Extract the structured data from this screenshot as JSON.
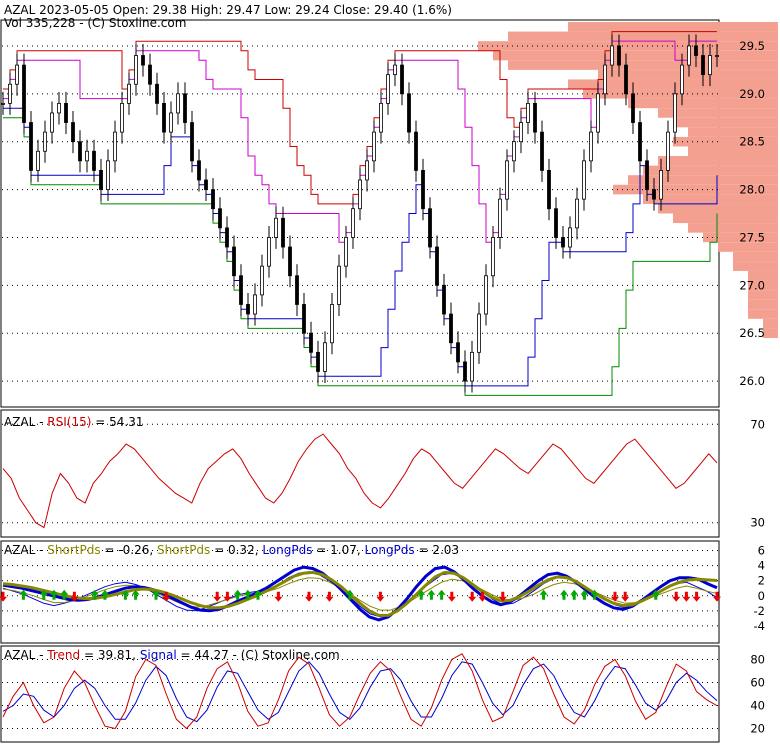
{
  "header": {
    "ticker": "AZAL",
    "line1_rest": "2023-05-05 Open: 29.38  High: 29.47  Low: 29.24  Close: 29.40 (1.6%)",
    "line2": "Vol 335,228  -  (C) Stoxline.com"
  },
  "colors": {
    "upper_channel": "#cc0000",
    "lower_channel": "#0000cc",
    "mid_line_magenta": "#cc00cc",
    "support_line": "#008800",
    "volume_profile": "#f4a090",
    "rsi": "#cc0000",
    "short_pds": "#0000ee",
    "short_pds_avg": "#888800",
    "long_pds": "#0000cc",
    "trend": "#cc0000",
    "signal": "#0000cc",
    "arrow_up": "#00aa00",
    "arrow_down": "#ee0000"
  },
  "panels": {
    "rsi": {
      "ticker": "AZAL",
      "sep1": " - ",
      "name": "RSI(15)",
      "value_text": " = 54.31"
    },
    "pds": {
      "ticker": "AZAL",
      "sep1": " - ",
      "short_name": "ShortPds",
      "short_value": " = -0.26, ",
      "short_name2": "ShortPds",
      "short_value2": " = 0.32, ",
      "long_name": "LongPds",
      "long_value": " = 1.07, ",
      "long_name2": "LongPds",
      "long_value2": " = 2.03"
    },
    "trend": {
      "ticker": "AZAL",
      "sep1": " - ",
      "trend_name": "Trend",
      "trend_value": " = 39.81, ",
      "signal_name": "Signal",
      "signal_value": " = 44.27",
      "credit": " - (C) Stoxline.com"
    }
  },
  "chart_data": [
    {
      "type": "candlestick",
      "panel": "price",
      "ylim": [
        25.75,
        29.75
      ],
      "y_ticks": [
        26.0,
        26.5,
        27.0,
        27.5,
        28.0,
        28.5,
        29.0,
        29.5
      ],
      "y_tick_labels": [
        "26.0",
        "26.5",
        "27.0",
        "27.5",
        "28.0",
        "28.5",
        "29.0",
        "29.5"
      ],
      "last": {
        "open": 29.38,
        "high": 29.47,
        "low": 29.24,
        "close": 29.4,
        "change_pct": 1.6,
        "volume": 335228
      },
      "close_series": [
        28.9,
        29.1,
        29.3,
        28.7,
        28.2,
        28.4,
        28.6,
        28.8,
        28.9,
        28.7,
        28.5,
        28.3,
        28.4,
        28.2,
        28.0,
        28.3,
        28.6,
        28.9,
        29.1,
        29.4,
        29.3,
        29.1,
        28.9,
        28.6,
        28.8,
        29.0,
        28.7,
        28.3,
        28.1,
        28.0,
        27.8,
        27.6,
        27.4,
        27.1,
        26.8,
        26.7,
        26.9,
        27.2,
        27.5,
        27.7,
        27.4,
        27.1,
        26.8,
        26.5,
        26.3,
        26.1,
        26.4,
        26.8,
        27.2,
        27.5,
        27.8,
        28.1,
        28.3,
        28.6,
        28.9,
        29.2,
        29.3,
        29.0,
        28.6,
        28.2,
        27.8,
        27.4,
        27.0,
        26.7,
        26.4,
        26.2,
        26.0,
        26.3,
        26.7,
        27.1,
        27.5,
        27.9,
        28.3,
        28.5,
        28.7,
        28.9,
        28.6,
        28.2,
        27.8,
        27.5,
        27.4,
        27.6,
        27.9,
        28.3,
        28.6,
        29.0,
        29.3,
        29.5,
        29.3,
        29.0,
        28.7,
        28.3,
        28.0,
        27.9,
        28.2,
        28.6,
        29.0,
        29.3,
        29.5,
        29.4,
        29.2,
        29.4,
        29.4
      ],
      "volume_profile": {
        "price_levels": [
          29.7,
          29.6,
          29.5,
          29.4,
          29.3,
          29.2,
          29.1,
          29.0,
          28.9,
          28.8,
          28.7,
          28.6,
          28.5,
          28.4,
          28.3,
          28.2,
          28.1,
          28.0,
          27.9,
          27.8,
          27.7,
          27.6,
          27.5,
          27.4,
          27.3,
          27.2,
          27.1,
          27.0,
          26.9,
          26.8,
          26.7,
          26.6,
          26.5
        ],
        "relative_volume": [
          0.7,
          0.9,
          1.0,
          0.95,
          0.9,
          0.6,
          0.7,
          0.65,
          0.5,
          0.4,
          0.35,
          0.3,
          0.35,
          0.3,
          0.4,
          0.45,
          0.5,
          0.55,
          0.45,
          0.4,
          0.35,
          0.3,
          0.25,
          0.2,
          0.15,
          0.15,
          0.1,
          0.1,
          0.1,
          0.1,
          0.1,
          0.05,
          0.05
        ]
      }
    },
    {
      "type": "line",
      "panel": "rsi",
      "ylim": [
        25,
        75
      ],
      "y_tick_labels": [
        "70",
        "30"
      ],
      "y_ticks": [
        70,
        30
      ],
      "series": [
        {
          "name": "RSI(15)",
          "last": 54.31,
          "values": [
            52,
            48,
            40,
            35,
            30,
            28,
            42,
            50,
            46,
            40,
            38,
            46,
            50,
            55,
            58,
            62,
            60,
            56,
            52,
            48,
            45,
            42,
            40,
            38,
            46,
            52,
            55,
            58,
            60,
            56,
            50,
            45,
            40,
            38,
            42,
            48,
            55,
            60,
            64,
            66,
            62,
            58,
            52,
            48,
            42,
            38,
            36,
            40,
            45,
            50,
            56,
            60,
            58,
            54,
            50,
            46,
            44,
            48,
            52,
            56,
            60,
            58,
            55,
            52,
            50,
            54,
            58,
            62,
            60,
            56,
            52,
            48,
            46,
            50,
            54,
            58,
            62,
            64,
            60,
            56,
            52,
            48,
            44,
            46,
            50,
            54,
            58,
            54.31
          ]
        }
      ]
    },
    {
      "type": "line",
      "panel": "pds",
      "ylim": [
        -6,
        7
      ],
      "y_ticks": [
        6,
        4,
        2,
        0,
        -2,
        -4
      ],
      "y_tick_labels": [
        "6",
        "4",
        "2",
        "0",
        "-2",
        "-4"
      ],
      "series": [
        {
          "name": "ShortPds",
          "last": -0.26,
          "values": [
            1.0,
            0.6,
            0.2,
            -0.4,
            -1.0,
            -1.3,
            -1.0,
            -0.6,
            0.0,
            0.6,
            1.2,
            1.6,
            1.8,
            1.5,
            1.0,
            0.2,
            -0.6,
            -1.4,
            -1.9,
            -2.0,
            -1.5,
            -1.0,
            -0.4,
            0.1,
            0.4,
            0.6,
            0.9,
            1.5,
            2.4,
            3.0,
            3.2,
            2.8,
            2.0,
            1.0,
            -0.2,
            -1.4,
            -2.4,
            -2.8,
            -2.4,
            -1.5,
            -0.4,
            0.8,
            1.8,
            2.8,
            3.0,
            2.4,
            1.5,
            0.5,
            -0.5,
            -1.2,
            -1.0,
            -0.3,
            0.6,
            1.6,
            2.3,
            2.5,
            2.0,
            1.2,
            0.4,
            -0.4,
            -1.2,
            -1.6,
            -1.2,
            -0.5,
            0.3,
            1.0,
            1.6,
            1.8,
            1.2,
            0.6,
            -0.26
          ]
        },
        {
          "name": "ShortPds",
          "last": 0.32,
          "values": [
            0.9,
            0.7,
            0.4,
            0.0,
            -0.5,
            -0.9,
            -0.9,
            -0.6,
            -0.2,
            0.3,
            0.8,
            1.2,
            1.4,
            1.3,
            1.0,
            0.4,
            -0.2,
            -0.8,
            -1.3,
            -1.5,
            -1.3,
            -0.9,
            -0.5,
            -0.1,
            0.2,
            0.4,
            0.6,
            1.0,
            1.6,
            2.1,
            2.4,
            2.3,
            1.8,
            1.1,
            0.3,
            -0.6,
            -1.4,
            -1.9,
            -1.9,
            -1.4,
            -0.7,
            0.2,
            1.0,
            1.8,
            2.2,
            2.0,
            1.5,
            0.8,
            0.1,
            -0.5,
            -0.6,
            -0.3,
            0.2,
            0.9,
            1.5,
            1.8,
            1.6,
            1.1,
            0.5,
            -0.1,
            -0.6,
            -1.0,
            -0.9,
            -0.5,
            0.0,
            0.5,
            1.0,
            1.3,
            1.0,
            0.6,
            0.32
          ]
        },
        {
          "name": "LongPds",
          "last": 1.07,
          "values": [
            1.4,
            1.2,
            1.0,
            0.7,
            0.4,
            0.1,
            -0.2,
            -0.5,
            -0.6,
            -0.5,
            -0.2,
            0.2,
            0.6,
            1.0,
            1.2,
            1.1,
            0.8,
            0.3,
            -0.3,
            -0.9,
            -1.5,
            -1.9,
            -2.0,
            -1.8,
            -1.3,
            -0.7,
            -0.2,
            0.4,
            1.0,
            1.8,
            2.6,
            3.4,
            3.8,
            3.6,
            3.0,
            2.0,
            0.8,
            -0.5,
            -1.8,
            -2.8,
            -3.2,
            -2.8,
            -1.8,
            -0.4,
            1.2,
            2.6,
            3.6,
            3.8,
            3.2,
            2.2,
            1.0,
            0.0,
            -0.8,
            -1.2,
            -0.8,
            0.0,
            1.0,
            2.0,
            2.8,
            3.0,
            2.6,
            1.8,
            0.8,
            -0.2,
            -1.0,
            -1.6,
            -1.8,
            -1.4,
            -0.6,
            0.3,
            1.2,
            2.0,
            2.4,
            2.4,
            2.2,
            1.6,
            1.07
          ]
        },
        {
          "name": "LongPds",
          "last": 2.03,
          "values": [
            1.6,
            1.5,
            1.3,
            1.1,
            0.8,
            0.5,
            0.2,
            -0.1,
            -0.3,
            -0.4,
            -0.3,
            -0.1,
            0.2,
            0.5,
            0.8,
            0.9,
            0.8,
            0.5,
            0.1,
            -0.4,
            -0.9,
            -1.3,
            -1.6,
            -1.6,
            -1.4,
            -1.0,
            -0.5,
            0.0,
            0.6,
            1.2,
            1.9,
            2.6,
            3.0,
            3.1,
            2.8,
            2.1,
            1.2,
            0.1,
            -1.0,
            -2.0,
            -2.6,
            -2.6,
            -2.0,
            -1.0,
            0.2,
            1.4,
            2.5,
            3.1,
            3.0,
            2.4,
            1.5,
            0.6,
            -0.2,
            -0.7,
            -0.6,
            -0.1,
            0.6,
            1.4,
            2.1,
            2.5,
            2.4,
            1.9,
            1.1,
            0.3,
            -0.4,
            -1.0,
            -1.3,
            -1.2,
            -0.7,
            -0.1,
            0.6,
            1.3,
            1.8,
            2.1,
            2.2,
            2.1,
            2.03
          ]
        }
      ],
      "arrows_up_idx": [
        2,
        4,
        5,
        6,
        9,
        10,
        12,
        13,
        15,
        23,
        24,
        25,
        34,
        41,
        42,
        43,
        53,
        55,
        56,
        57,
        58,
        64
      ],
      "arrows_down_idx": [
        0,
        7,
        16,
        21,
        22,
        27,
        30,
        32,
        37,
        44,
        46,
        47,
        49,
        60,
        61,
        66,
        67,
        68,
        70
      ]
    },
    {
      "type": "line",
      "panel": "trend",
      "ylim": [
        10,
        90
      ],
      "y_ticks": [
        80,
        60,
        40,
        20
      ],
      "y_tick_labels": [
        "80",
        "60",
        "40",
        "20"
      ],
      "series": [
        {
          "name": "Trend",
          "last": 39.81,
          "values": [
            30,
            48,
            60,
            40,
            25,
            30,
            55,
            70,
            60,
            40,
            22,
            20,
            35,
            65,
            80,
            75,
            50,
            28,
            20,
            30,
            55,
            72,
            78,
            60,
            35,
            22,
            25,
            45,
            70,
            82,
            76,
            55,
            32,
            22,
            30,
            50,
            68,
            78,
            70,
            48,
            28,
            22,
            38,
            62,
            80,
            85,
            70,
            45,
            26,
            30,
            52,
            75,
            82,
            72,
            50,
            30,
            24,
            36,
            58,
            74,
            80,
            66,
            44,
            28,
            34,
            56,
            76,
            70,
            52,
            45,
            39.81
          ]
        },
        {
          "name": "Signal",
          "last": 44.27,
          "values": [
            35,
            40,
            50,
            48,
            36,
            30,
            40,
            55,
            62,
            55,
            40,
            28,
            28,
            42,
            62,
            74,
            66,
            46,
            30,
            26,
            36,
            56,
            70,
            68,
            52,
            36,
            28,
            34,
            52,
            70,
            78,
            68,
            50,
            34,
            28,
            38,
            56,
            70,
            72,
            62,
            44,
            30,
            30,
            46,
            66,
            78,
            76,
            60,
            42,
            32,
            40,
            58,
            72,
            76,
            66,
            48,
            34,
            30,
            44,
            62,
            74,
            72,
            58,
            42,
            36,
            44,
            60,
            68,
            62,
            52,
            44.27
          ]
        }
      ]
    }
  ]
}
